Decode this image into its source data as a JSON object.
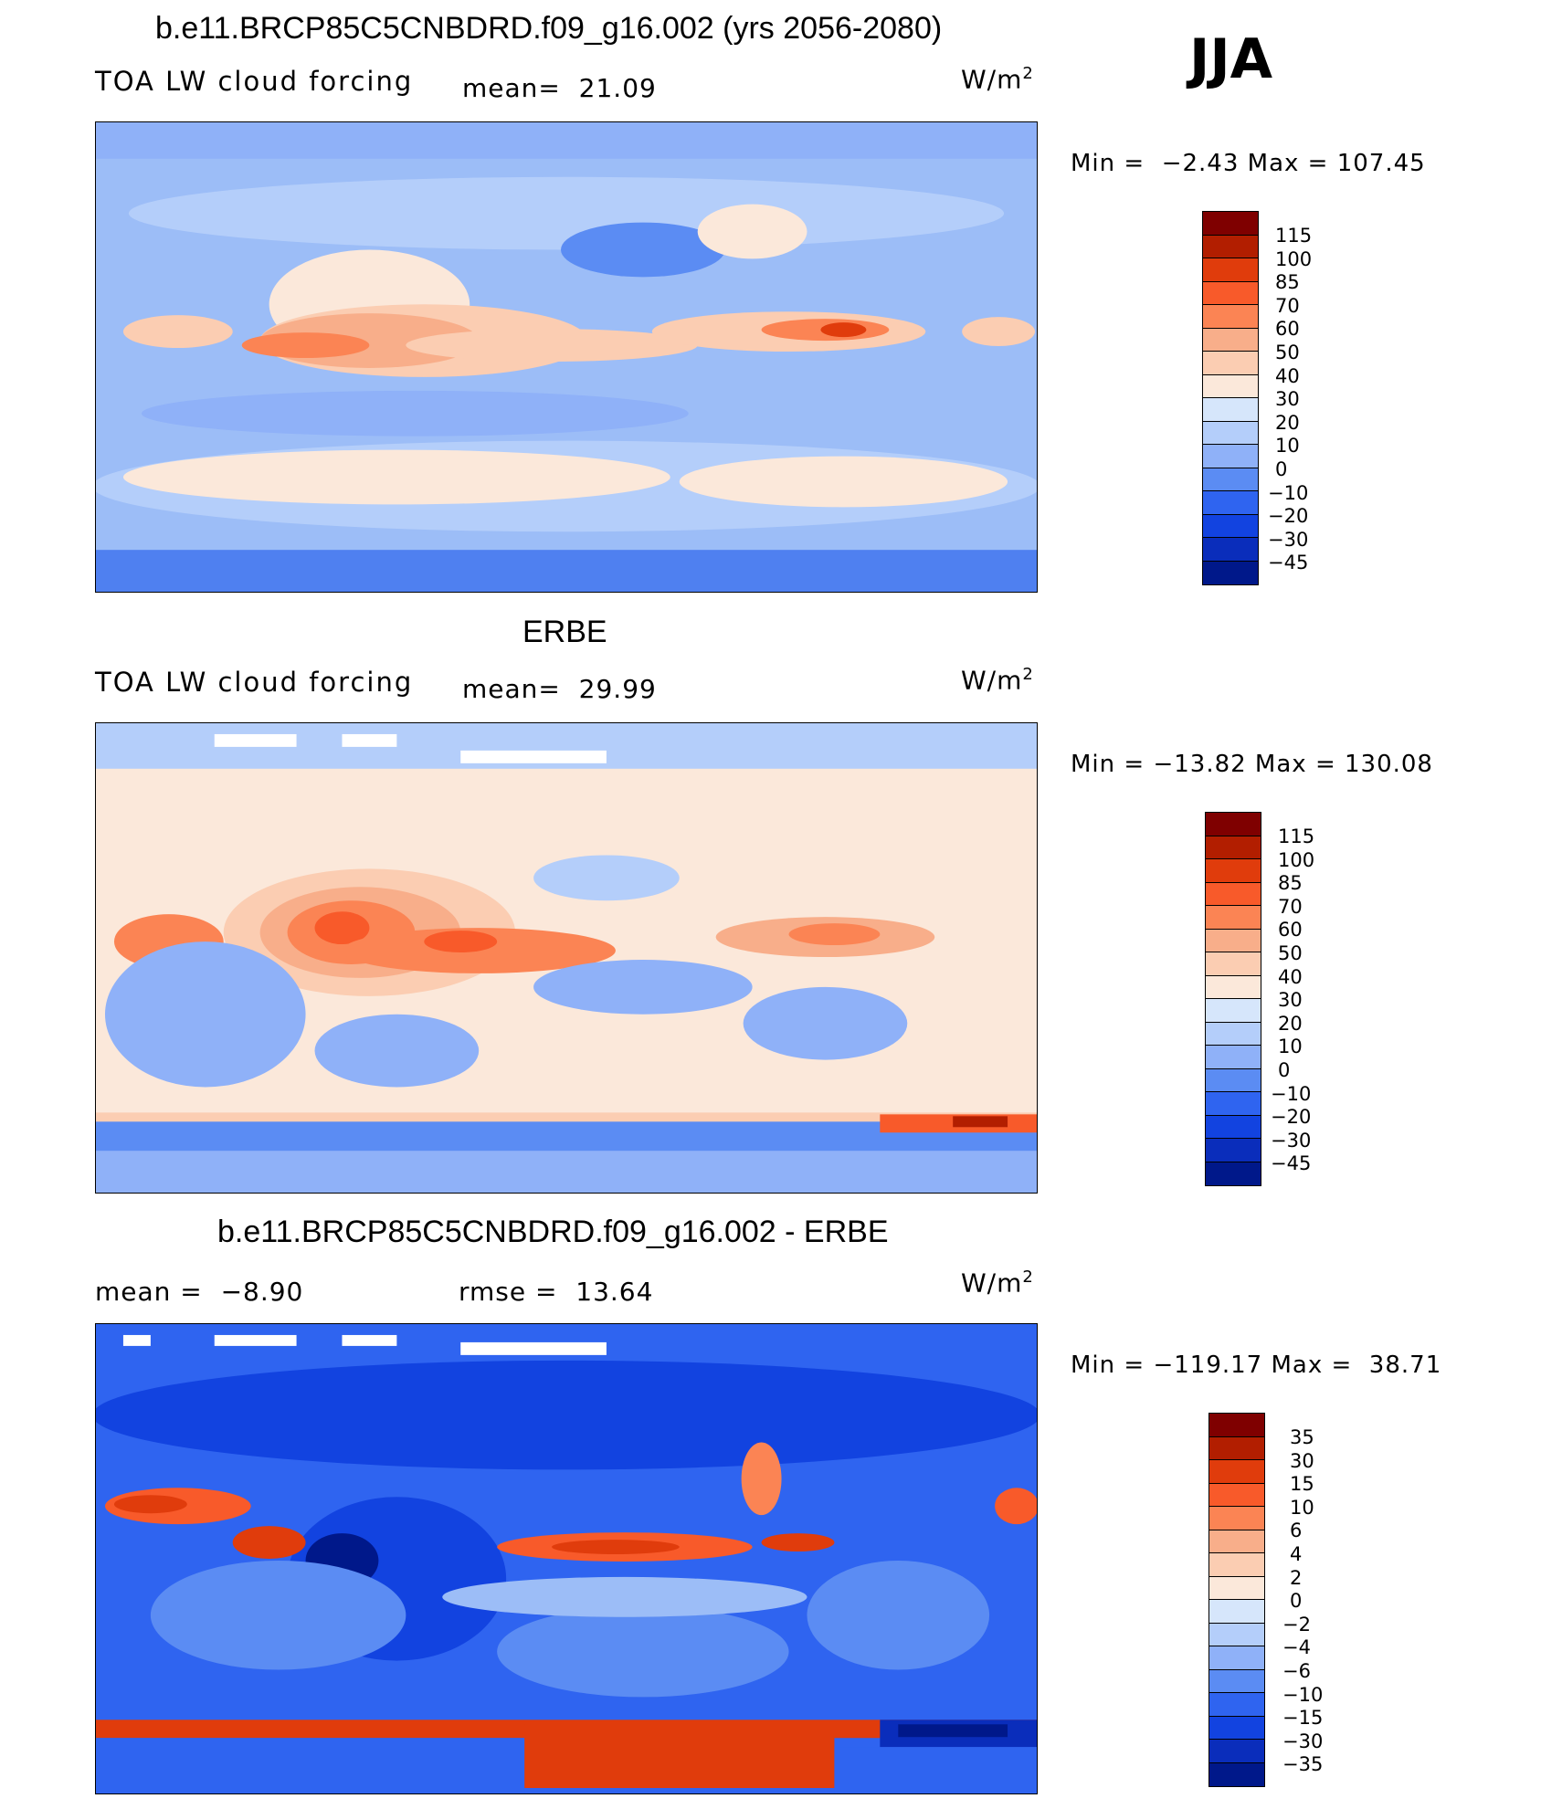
{
  "season": "JJA",
  "panels": [
    {
      "title": "b.e11.BRCP85C5CNBDRD.f09_g16.002 (yrs 2056-2080)",
      "left_label": "TOA LW cloud forcing",
      "center_stat": "mean=  21.09",
      "units": "W/m",
      "units_sup": "2",
      "minmax": "Min =  −2.43 Max = 107.45",
      "colorbar_labels": [
        "115",
        "100",
        "85",
        "70",
        "60",
        "50",
        "40",
        "30",
        "20",
        "10",
        "0",
        "−10",
        "−20",
        "−30",
        "−45"
      ]
    },
    {
      "title": "ERBE",
      "left_label": "TOA LW cloud forcing",
      "center_stat": "mean=  29.99",
      "units": "W/m",
      "units_sup": "2",
      "minmax": "Min = −13.82 Max = 130.08",
      "colorbar_labels": [
        "115",
        "100",
        "85",
        "70",
        "60",
        "50",
        "40",
        "30",
        "20",
        "10",
        "0",
        "−10",
        "−20",
        "−30",
        "−45"
      ]
    },
    {
      "title": "b.e11.BRCP85C5CNBDRD.f09_g16.002 - ERBE",
      "left_label": "mean =  −8.90",
      "center_stat": "rmse =  13.64",
      "units": "W/m",
      "units_sup": "2",
      "minmax": "Min = −119.17 Max =  38.71",
      "colorbar_labels": [
        "35",
        "30",
        "15",
        "10",
        "6",
        "4",
        "2",
        "0",
        "−2",
        "−4",
        "−6",
        "−10",
        "−15",
        "−30",
        "−35"
      ]
    }
  ],
  "colorbar_colors": [
    "#7f0000",
    "#b21e00",
    "#e03c0c",
    "#f85a2a",
    "#fb8454",
    "#f8ae8a",
    "#fbcdb2",
    "#fbe8da",
    "#d6e6fb",
    "#b4cefa",
    "#8fb1f8",
    "#5b8cf3",
    "#2f64f0",
    "#1243e0",
    "#0a2dbb",
    "#00188a"
  ],
  "chart_data": [
    {
      "type": "heatmap",
      "title": "b.e11.BRCP85C5CNBDRD.f09_g16.002 (yrs 2056-2080)",
      "subtitle": "TOA LW cloud forcing",
      "units": "W/m2",
      "mean": 21.09,
      "min": -2.43,
      "max": 107.45,
      "levels": [
        -45,
        -30,
        -20,
        -10,
        0,
        10,
        20,
        30,
        40,
        50,
        60,
        70,
        85,
        100,
        115
      ],
      "projection": "global lat-lon map, continents outlined",
      "legend": "right"
    },
    {
      "type": "heatmap",
      "title": "ERBE",
      "subtitle": "TOA LW cloud forcing",
      "units": "W/m2",
      "mean": 29.99,
      "min": -13.82,
      "max": 130.08,
      "levels": [
        -45,
        -30,
        -20,
        -10,
        0,
        10,
        20,
        30,
        40,
        50,
        60,
        70,
        85,
        100,
        115
      ],
      "projection": "global lat-lon map, continents outlined",
      "legend": "right"
    },
    {
      "type": "heatmap",
      "title": "b.e11.BRCP85C5CNBDRD.f09_g16.002 - ERBE",
      "units": "W/m2",
      "mean": -8.9,
      "rmse": 13.64,
      "min": -119.17,
      "max": 38.71,
      "levels": [
        -35,
        -30,
        -15,
        -10,
        -6,
        -4,
        -2,
        0,
        2,
        4,
        6,
        10,
        15,
        30,
        35
      ],
      "projection": "global lat-lon map, continents outlined",
      "legend": "right"
    }
  ]
}
